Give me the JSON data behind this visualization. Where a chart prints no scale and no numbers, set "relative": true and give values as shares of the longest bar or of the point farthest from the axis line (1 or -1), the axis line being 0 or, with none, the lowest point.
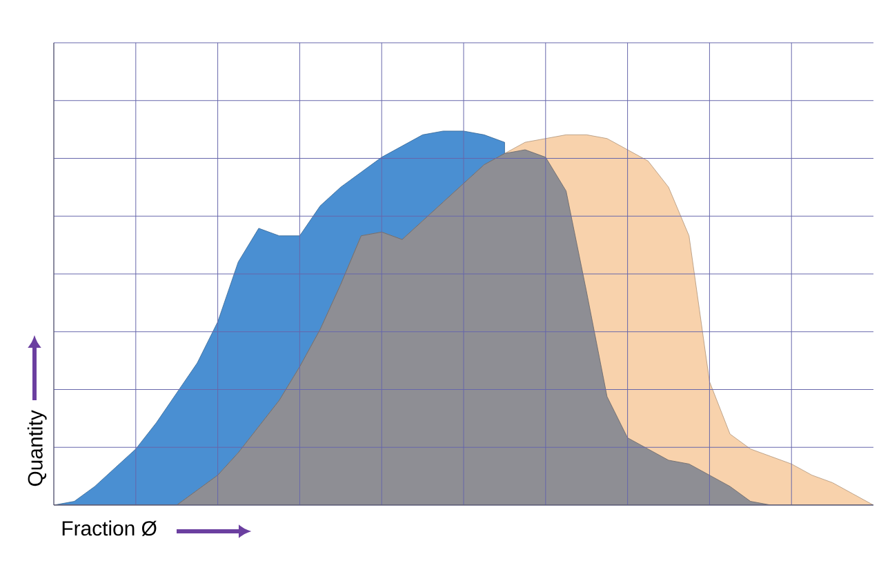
{
  "chart_data": {
    "type": "area",
    "relative": true,
    "xlabel": "Fraction Ø",
    "ylabel": "Quantity",
    "grid": true,
    "categories": [
      null,
      null,
      null,
      null,
      null,
      null,
      null,
      null,
      null,
      null,
      null,
      null,
      null,
      null,
      null,
      null,
      null,
      null,
      null,
      null,
      null,
      null,
      null,
      null,
      null,
      null,
      null,
      null,
      null,
      null,
      null,
      null,
      null,
      null,
      null,
      null,
      null,
      null,
      null,
      null,
      null
    ],
    "series": [
      {
        "color": "#4a8fd2",
        "values": [
          0,
          0.01,
          0.05,
          0.1,
          0.15,
          0.22,
          0.3,
          0.38,
          0.49,
          0.65,
          0.74,
          0.72,
          0.72,
          0.8,
          0.85,
          0.89,
          0.93,
          0.96,
          0.99,
          1,
          1,
          0.99,
          0.97,
          null,
          null,
          null,
          null,
          null,
          null,
          null,
          null,
          null,
          null,
          null,
          null,
          null,
          null,
          null,
          null,
          null,
          null
        ]
      },
      {
        "color": "#f8d2ac",
        "values": [
          0,
          0,
          0,
          0,
          0,
          0,
          0,
          0.04,
          0.08,
          0.14,
          0.21,
          0.28,
          0.37,
          0.47,
          0.59,
          0.72,
          0.73,
          0.71,
          0.76,
          0.81,
          0.86,
          0.91,
          0.94,
          0.97,
          0.98,
          0.99,
          0.99,
          0.98,
          0.95,
          0.92,
          0.85,
          0.72,
          0.33,
          0.19,
          0.15,
          0.13,
          0.11,
          0.08,
          0.06,
          0.03,
          0
        ]
      },
      {
        "color": "#8e8e94",
        "values": [
          0,
          0,
          0,
          0,
          0,
          0,
          0,
          0.04,
          0.08,
          0.14,
          0.21,
          0.28,
          0.37,
          0.47,
          0.59,
          0.72,
          0.73,
          0.71,
          0.76,
          0.81,
          0.86,
          0.91,
          0.94,
          0.95,
          0.93,
          0.84,
          0.57,
          0.29,
          0.18,
          0.15,
          0.12,
          0.11,
          0.08,
          0.05,
          0.01,
          0,
          0,
          0,
          0,
          0,
          0
        ]
      }
    ]
  }
}
